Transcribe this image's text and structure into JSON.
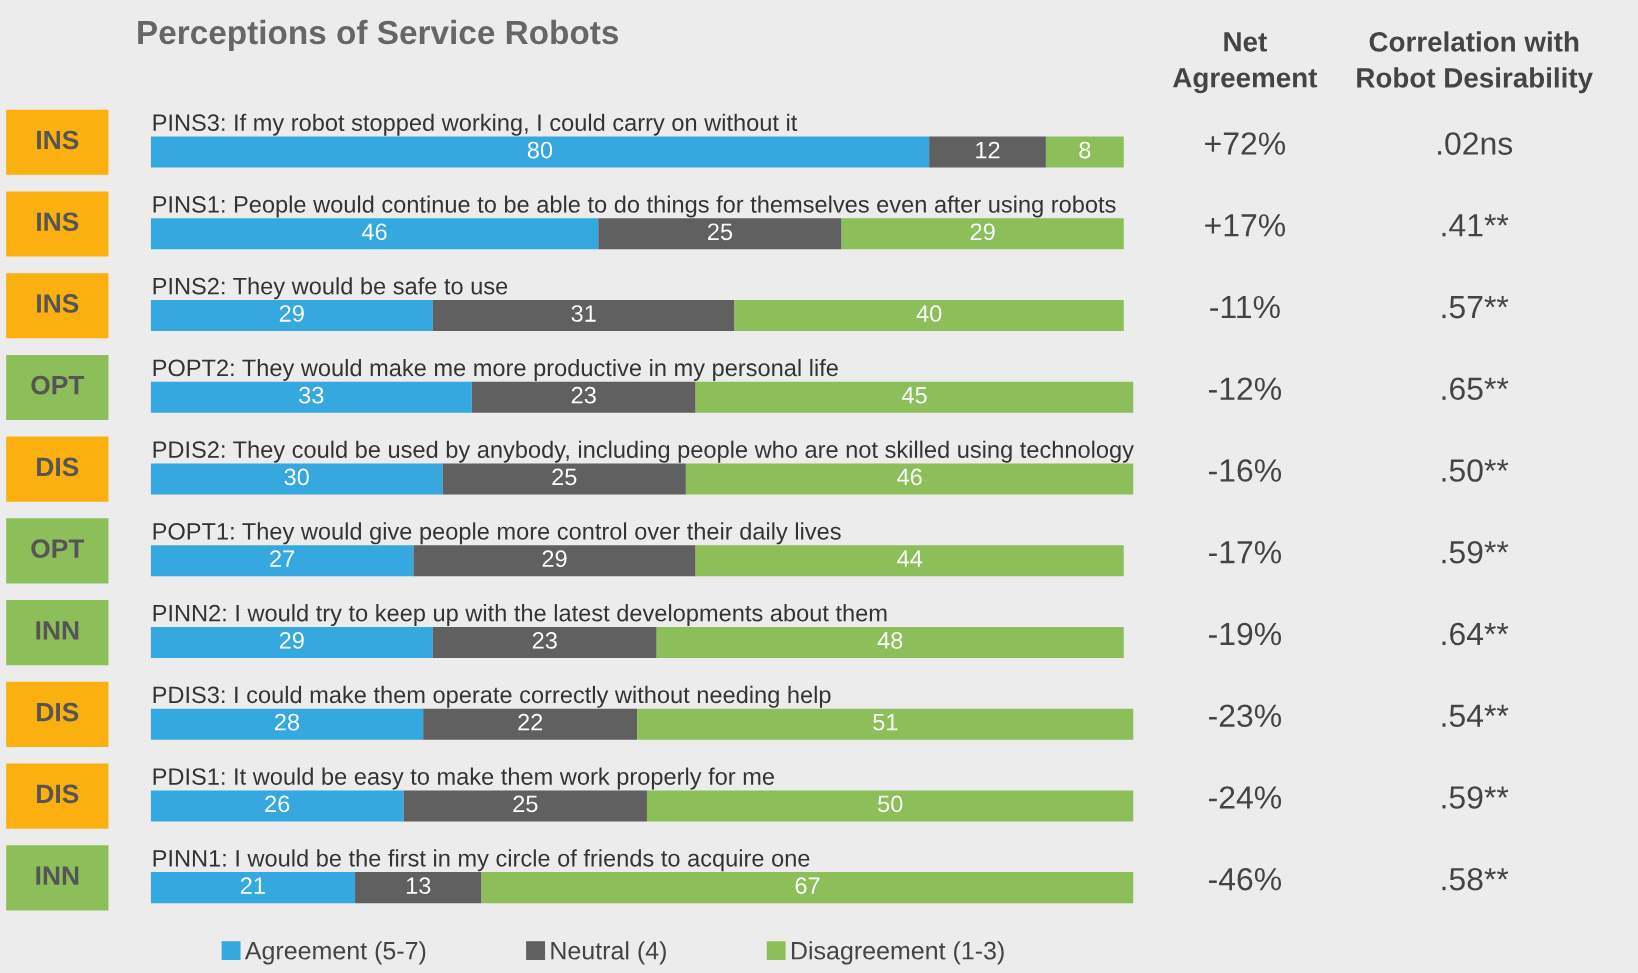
{
  "chart_data": [
    {
      "type": "other",
      "annotations": [
        "INS",
        "INS",
        "INS",
        "OPT",
        "DIS",
        "OPT",
        "INN",
        "DIS",
        "DIS",
        "INN"
      ],
      "colors": [
        "#fbb010",
        "#fbb010",
        "#fbb010",
        "#8cbf5a",
        "#fbb010",
        "#8cbf5a",
        "#8cbf5a",
        "#fbb010",
        "#fbb010",
        "#8cbf5a"
      ]
    },
    {
      "type": "bar",
      "title": "Perceptions of Service Robots",
      "orientation": "horizontal",
      "stacked": true,
      "data_labels": true,
      "legend": "bottom",
      "categories": [
        "PINS3: If my robot stopped working, I could carry on without it",
        "PINS1: People would continue to be able to do things for themselves even after using robots",
        "PINS2: They would be safe to use",
        "POPT2: They would make me more productive in my personal life",
        "PDIS2: They could be used by anybody, including people who are not skilled using technology",
        "POPT1: They would give people more control over their daily lives",
        "PINN2: I would try to keep up with the latest developments about them",
        "PDIS3: I could make them operate correctly without needing help",
        "PDIS1: It would be easy to make them work properly for me",
        "PINN1: I would be the first in my circle of friends to acquire one"
      ],
      "series": [
        {
          "name": "Agreement (5-7)",
          "color": "#35a8e0",
          "values": [
            80,
            46,
            29,
            33,
            30,
            27,
            29,
            28,
            26,
            21
          ]
        },
        {
          "name": "Neutral (4)",
          "color": "#606060",
          "values": [
            12,
            25,
            31,
            23,
            25,
            29,
            23,
            22,
            25,
            13
          ]
        },
        {
          "name": "Disagreement (1-3)",
          "color": "#8cbf5a",
          "values": [
            8,
            29,
            40,
            45,
            46,
            44,
            48,
            51,
            50,
            67
          ]
        }
      ]
    },
    {
      "type": "other",
      "title": "Net\nAgreement",
      "annotations": [
        "+72%",
        "+17%",
        "-11%",
        "-12%",
        "-16%",
        "-17%",
        "-19%",
        "-23%",
        "-24%",
        "-46%"
      ]
    },
    {
      "type": "other",
      "title": "Correlation with\nRobot Desirability",
      "annotations": [
        ".02ns",
        ".41**",
        ".57**",
        ".65**",
        ".50**",
        ".59**",
        ".64**",
        ".54**",
        ".59**",
        ".58**"
      ]
    }
  ]
}
